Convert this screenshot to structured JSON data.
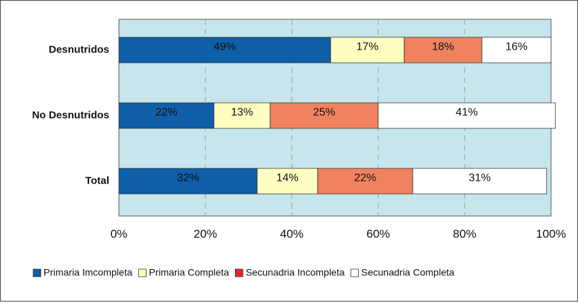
{
  "chart_data": {
    "type": "stacked-barh",
    "categories": [
      "Desnutridos",
      "No Desnutridos",
      "Total"
    ],
    "series": [
      {
        "name": "Primaria Imcompleta",
        "color": "#0e5ea8",
        "values": [
          49,
          22,
          32
        ],
        "value_labels": [
          "49%",
          "22%",
          "32%"
        ]
      },
      {
        "name": "Primaria Completa",
        "color": "#ffffc2",
        "values": [
          17,
          13,
          14
        ],
        "value_labels": [
          "17%",
          "13%",
          "14%"
        ]
      },
      {
        "name": "Secunadria Incompleta",
        "color": "#f0825f",
        "legend_color": "#e8232a",
        "values": [
          18,
          25,
          22
        ],
        "value_labels": [
          "18%",
          "25%",
          "22%"
        ]
      },
      {
        "name": "Secunadria Completa",
        "color": "#ffffff",
        "values": [
          16,
          41,
          31
        ],
        "value_labels": [
          "16%",
          "41%",
          "31%"
        ]
      }
    ],
    "xlim": [
      0,
      100
    ],
    "xticks": [
      {
        "value": 0,
        "label": "0%"
      },
      {
        "value": 20,
        "label": "20%"
      },
      {
        "value": 40,
        "label": "40%"
      },
      {
        "value": 60,
        "label": "60%"
      },
      {
        "value": 80,
        "label": "80%"
      },
      {
        "value": 100,
        "label": "100%"
      }
    ],
    "grid": true,
    "plot_background": "#c6e6ec",
    "legend": "bottom"
  }
}
